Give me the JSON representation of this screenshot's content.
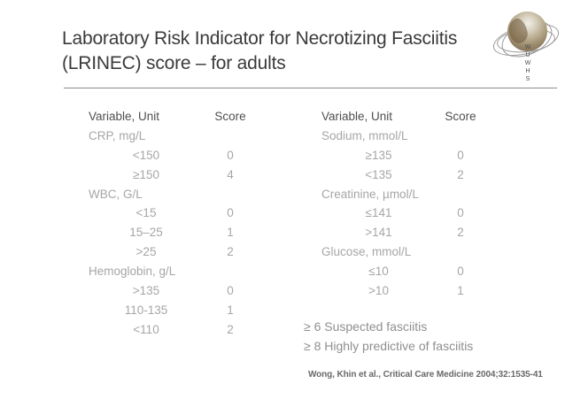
{
  "header": {
    "title_line1": "Laboratory Risk Indicator for Necrotizing Fasciitis",
    "title_line2": "(LRINEC) score – for adults"
  },
  "logo": {
    "description": "WUWHS globe with orbit rings",
    "letters": [
      "W",
      "U",
      "W",
      "H",
      "S"
    ],
    "sphere_colors": [
      "#f2efe8",
      "#b3a587",
      "#6a5a44"
    ],
    "ring_color": "#9a9a9a"
  },
  "tables": {
    "left": {
      "header": {
        "variable": "Variable, Unit",
        "score": "Score"
      },
      "rows": [
        {
          "type": "variable",
          "label": "CRP, mg/L",
          "score": ""
        },
        {
          "type": "value",
          "label": "<150",
          "score": "0"
        },
        {
          "type": "value",
          "label": "≥150",
          "score": "4"
        },
        {
          "type": "variable",
          "label": "WBC, G/L",
          "score": ""
        },
        {
          "type": "value",
          "label": "<15",
          "score": "0"
        },
        {
          "type": "value",
          "label": "15–25",
          "score": "1"
        },
        {
          "type": "value",
          "label": ">25",
          "score": "2"
        },
        {
          "type": "variable",
          "label": "Hemoglobin, g/L",
          "score": ""
        },
        {
          "type": "value",
          "label": ">135",
          "score": "0"
        },
        {
          "type": "value",
          "label": "110-135",
          "score": "1"
        },
        {
          "type": "value",
          "label": "<110",
          "score": "2"
        }
      ]
    },
    "right": {
      "header": {
        "variable": "Variable, Unit",
        "score": "Score"
      },
      "rows": [
        {
          "type": "variable",
          "label": "Sodium, mmol/L",
          "score": ""
        },
        {
          "type": "value",
          "label": "≥135",
          "score": "0"
        },
        {
          "type": "value",
          "label": "<135",
          "score": "2"
        },
        {
          "type": "variable",
          "label": "Creatinine, µmol/L",
          "score": ""
        },
        {
          "type": "value",
          "label": "≤141",
          "score": "0"
        },
        {
          "type": "value",
          "label": ">141",
          "score": "2"
        },
        {
          "type": "variable",
          "label": "Glucose, mmol/L",
          "score": ""
        },
        {
          "type": "value",
          "label": "≤10",
          "score": "0"
        },
        {
          "type": "value",
          "label": ">10",
          "score": "1"
        }
      ]
    }
  },
  "notes": {
    "line1": "≥ 6 Suspected fasciitis",
    "line2": "≥ 8 Highly predictive of fasciitis"
  },
  "footer": {
    "citation": "Wong, Khin et al., Critical Care Medicine 2004;32:1535-41"
  },
  "colors": {
    "background": "#ffffff",
    "title_text": "#3a3a3a",
    "table_header_text": "#4f4f4f",
    "table_body_text": "#a6a6a6",
    "notes_text": "#8f8f8f",
    "citation_text": "#686868",
    "divider": "#8c8c8c"
  }
}
